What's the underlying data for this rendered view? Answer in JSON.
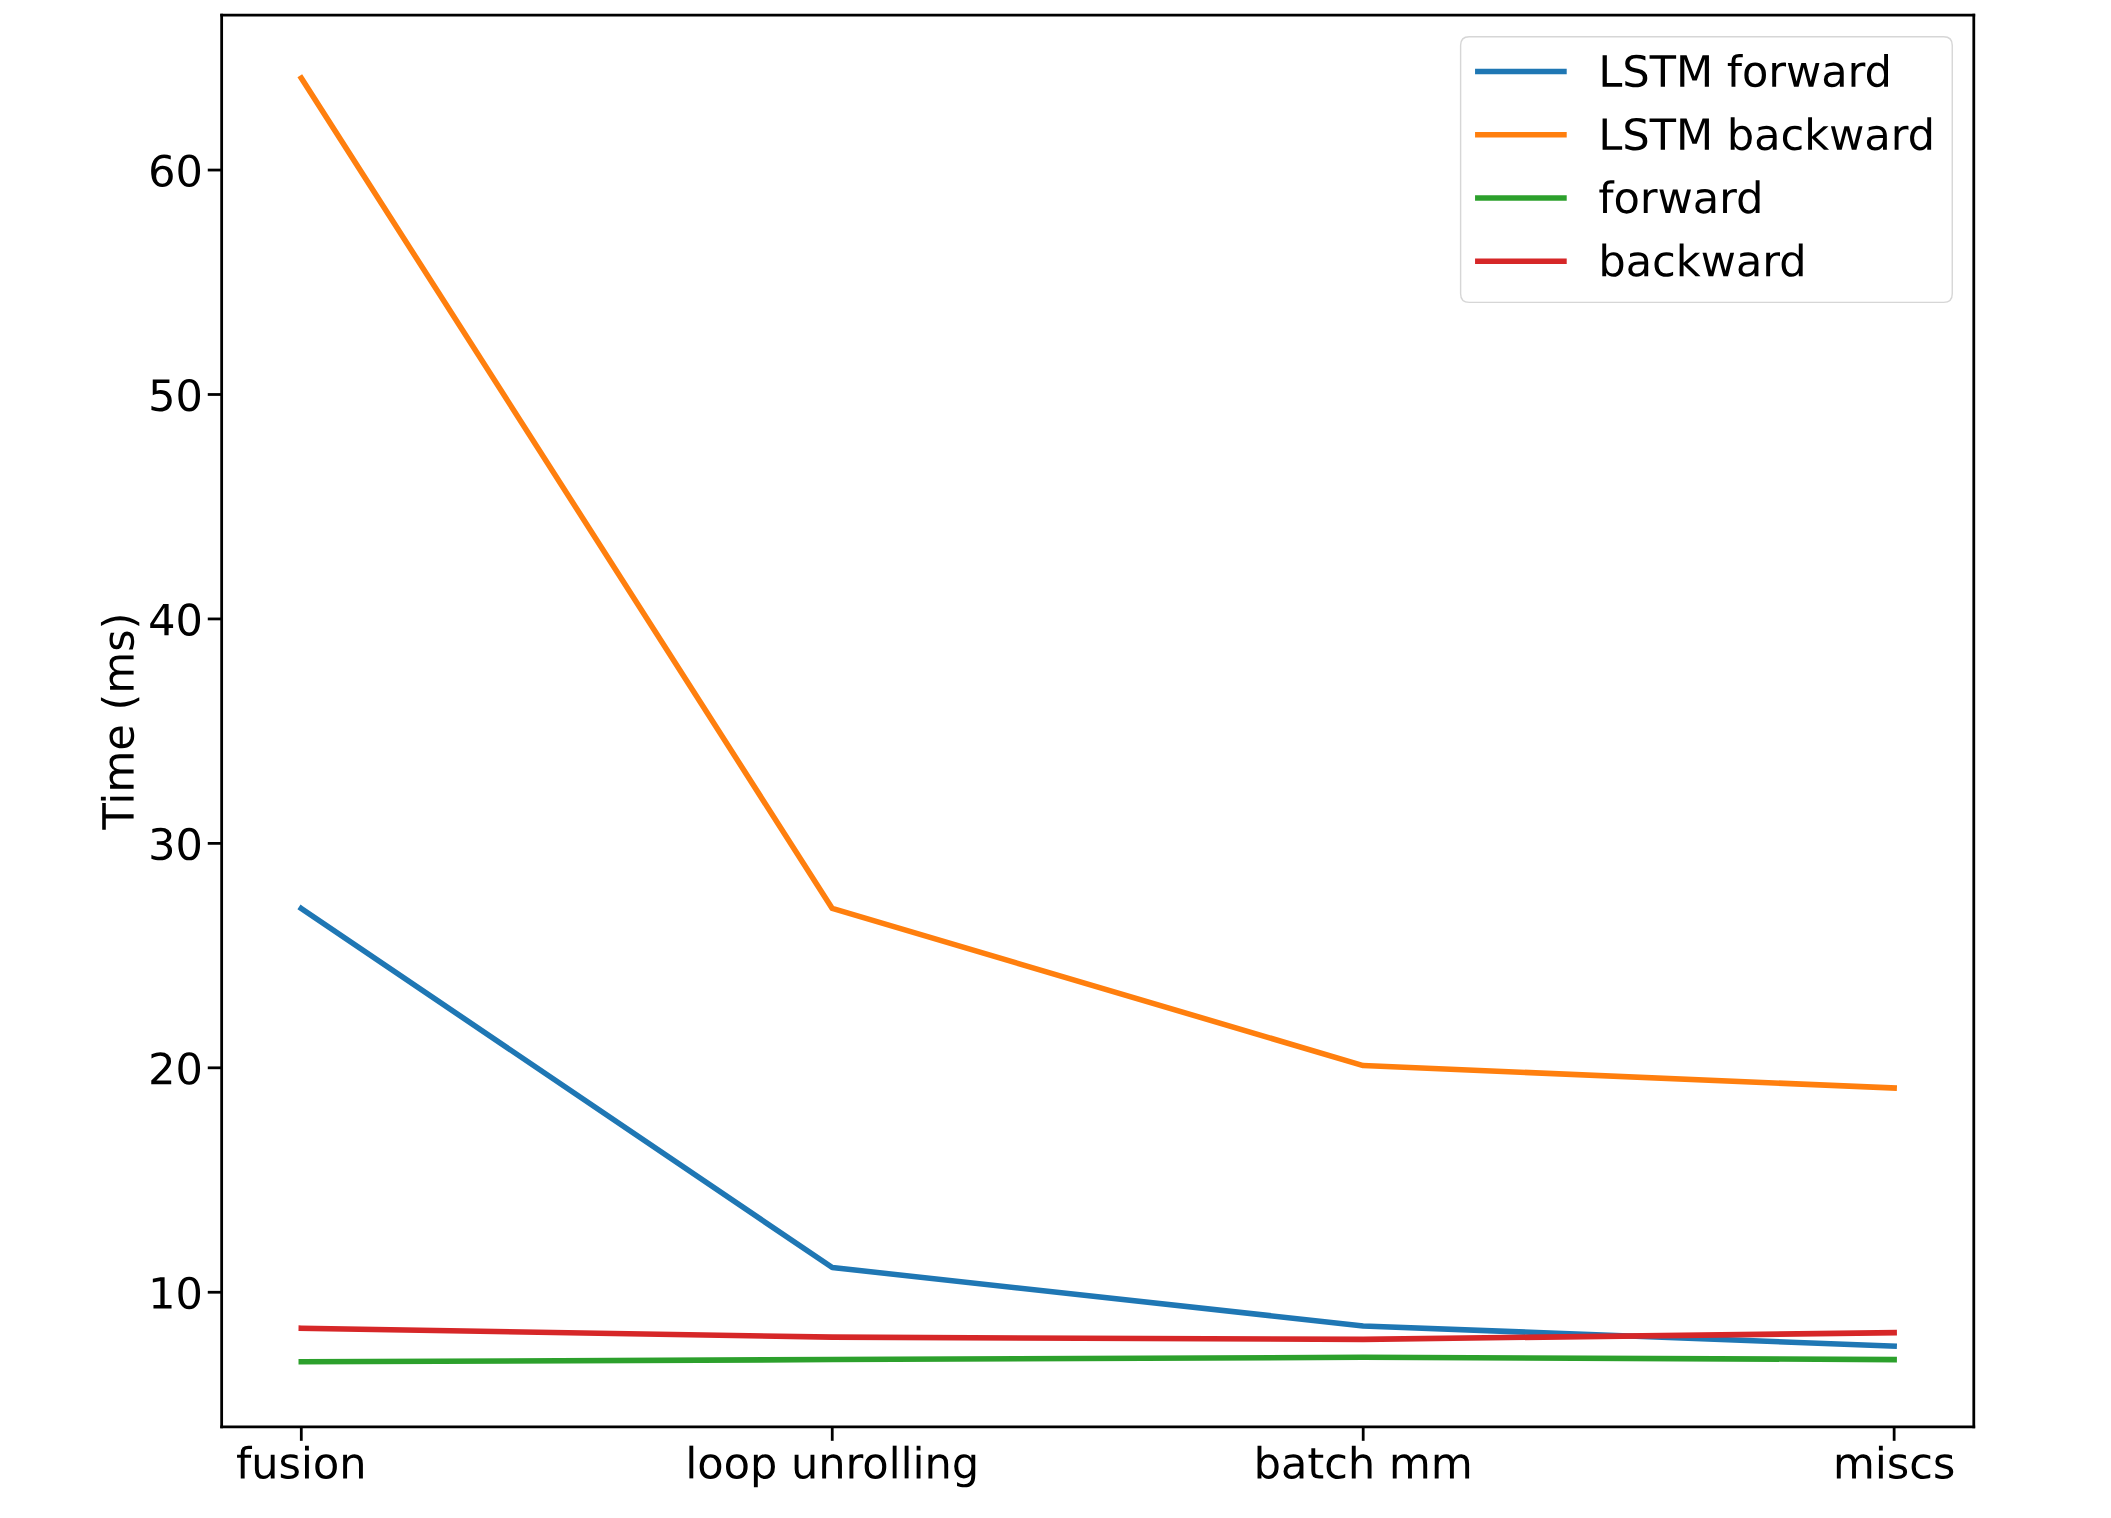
{
  "chart_data": {
    "type": "line",
    "ylabel": "Time (ms)",
    "categories": [
      "fusion",
      "loop unrolling",
      "batch mm",
      "miscs"
    ],
    "series": [
      {
        "name": "LSTM forward",
        "color": "#1f77b4",
        "values": [
          27.1,
          11.1,
          8.5,
          7.6
        ]
      },
      {
        "name": "LSTM backward",
        "color": "#ff7f0e",
        "values": [
          64.1,
          27.1,
          20.1,
          19.1
        ]
      },
      {
        "name": "forward",
        "color": "#2ca02c",
        "values": [
          6.9,
          7.0,
          7.1,
          7.0
        ]
      },
      {
        "name": "backward",
        "color": "#d62728",
        "values": [
          8.4,
          8.0,
          7.9,
          8.2
        ]
      }
    ],
    "ylim": [
      4.0,
      66.9
    ],
    "yticks": [
      10,
      20,
      30,
      40,
      50,
      60
    ],
    "grid": false,
    "legend": "top right",
    "marker": "none",
    "line_style": "solid"
  }
}
